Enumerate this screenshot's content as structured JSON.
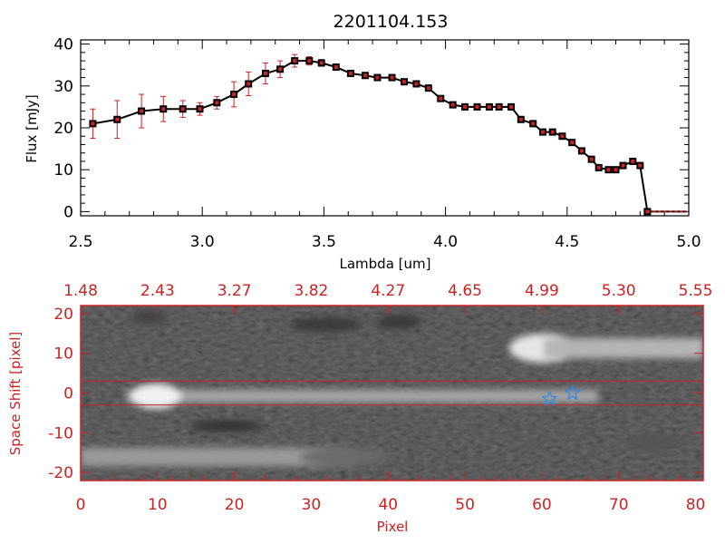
{
  "title": "2201104.153",
  "colors": {
    "red": "#cc2222",
    "black": "#000000",
    "star": "#2288ee"
  },
  "chart_data": [
    {
      "type": "line",
      "title": "2201104.153",
      "xlabel": "Lambda [um]",
      "ylabel": "Flux [mJy]",
      "xlim": [
        2.5,
        5.0
      ],
      "ylim": [
        -1,
        41
      ],
      "xticks": [
        "2.5",
        "3.0",
        "3.5",
        "4.0",
        "4.5",
        "5.0"
      ],
      "yticks": [
        "0",
        "10",
        "20",
        "30",
        "40"
      ],
      "series": [
        {
          "x": [
            2.55,
            2.65,
            2.75,
            2.84,
            2.92,
            2.99,
            3.06,
            3.13,
            3.19,
            3.26,
            3.32,
            3.38,
            3.44,
            3.49,
            3.55,
            3.61,
            3.67,
            3.72,
            3.78,
            3.83,
            3.88,
            3.93,
            3.98,
            4.03,
            4.08,
            4.13,
            4.18,
            4.22,
            4.27,
            4.31,
            4.36,
            4.4,
            4.44,
            4.48,
            4.52,
            4.56,
            4.6,
            4.63,
            4.67,
            4.7,
            4.73,
            4.77,
            4.8,
            4.83
          ],
          "y": [
            21,
            22,
            24,
            24.5,
            24.5,
            24.5,
            26,
            28,
            30.5,
            33,
            34,
            36,
            36,
            35.5,
            34.5,
            33,
            32.5,
            32,
            32,
            31,
            30.5,
            29.5,
            27,
            25.5,
            25,
            25,
            25,
            25,
            25,
            22,
            21,
            19,
            19,
            18,
            16.5,
            14.5,
            12.5,
            10.5,
            10,
            10,
            11,
            12,
            11,
            0
          ],
          "yerr": [
            3.5,
            4.5,
            4,
            3,
            2,
            1.5,
            1.5,
            3,
            2.8,
            2.5,
            2,
            1.5,
            1,
            0.8,
            0.6,
            0.5,
            0.4,
            0.4,
            0.4,
            0.4,
            0.4,
            0.4,
            0.4,
            0.4,
            0.4,
            0.4,
            0.4,
            0.4,
            0.4,
            0.4,
            0.4,
            0.4,
            0.4,
            0.4,
            0.4,
            0.4,
            0.4,
            0.4,
            0.4,
            0.4,
            0.4,
            0.4,
            0.4,
            0
          ]
        }
      ],
      "grid": false
    },
    {
      "type": "heatmap",
      "xlabel": "Pixel",
      "ylabel": "Space Shift [pixel]",
      "xlim": [
        0,
        81
      ],
      "ylim": [
        -22,
        22
      ],
      "xticks": [
        "0",
        "10",
        "20",
        "30",
        "40",
        "50",
        "60",
        "70",
        "80"
      ],
      "yticks": [
        "-20",
        "-10",
        "0",
        "10",
        "20"
      ],
      "top_axis_labels": [
        "1.48",
        "2.43",
        "3.27",
        "3.82",
        "4.27",
        "4.65",
        "4.99",
        "5.30",
        "5.55"
      ],
      "extraction_lines_y": [
        3,
        -3
      ],
      "stars": [
        {
          "x": 61,
          "y": -1.5
        },
        {
          "x": 64,
          "y": 0
        }
      ],
      "colormap": "grayscale"
    }
  ]
}
